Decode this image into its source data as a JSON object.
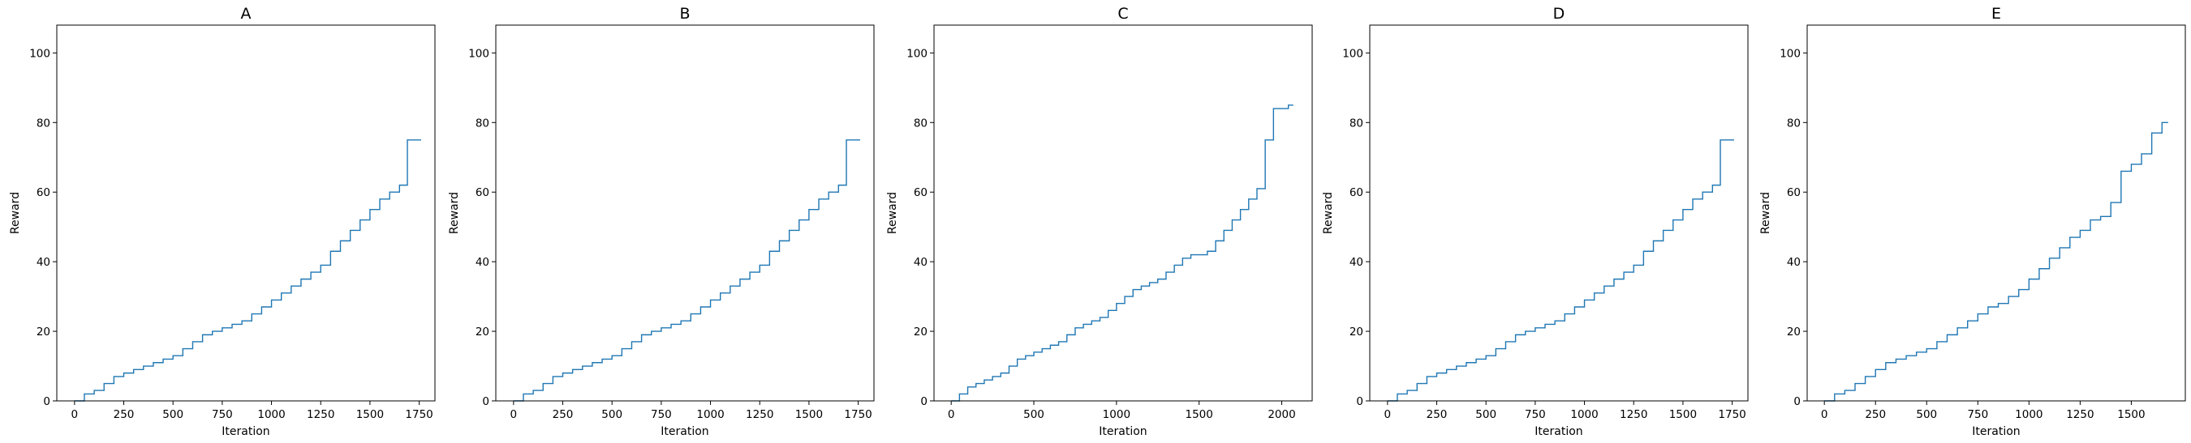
{
  "chart_data": [
    {
      "type": "line",
      "title": "A",
      "xlabel": "Iteration",
      "ylabel": "Reward",
      "xlim": [
        -90,
        1830
      ],
      "ylim": [
        0,
        108
      ],
      "xticks": [
        0,
        250,
        500,
        750,
        1000,
        1250,
        1500,
        1750
      ],
      "yticks": [
        0,
        20,
        40,
        60,
        80,
        100
      ],
      "grid": false,
      "color": "#1f77b4",
      "series": [
        {
          "x": [
            0,
            50,
            100,
            150,
            200,
            250,
            300,
            350,
            400,
            450,
            500,
            550,
            600,
            650,
            700,
            750,
            800,
            850,
            900,
            950,
            1000,
            1050,
            1100,
            1150,
            1200,
            1250,
            1300,
            1350,
            1400,
            1450,
            1500,
            1550,
            1600,
            1650,
            1690,
            1760
          ],
          "y": [
            0,
            2,
            3,
            5,
            7,
            8,
            9,
            10,
            11,
            12,
            13,
            15,
            17,
            19,
            20,
            21,
            22,
            23,
            25,
            27,
            29,
            31,
            33,
            35,
            37,
            39,
            43,
            46,
            49,
            52,
            55,
            58,
            60,
            62,
            75,
            75
          ]
        }
      ]
    },
    {
      "type": "line",
      "title": "B",
      "xlabel": "Iteration",
      "ylabel": "Reward",
      "xlim": [
        -90,
        1830
      ],
      "ylim": [
        0,
        108
      ],
      "xticks": [
        0,
        250,
        500,
        750,
        1000,
        1250,
        1500,
        1750
      ],
      "yticks": [
        0,
        20,
        40,
        60,
        80,
        100
      ],
      "grid": false,
      "color": "#1f77b4",
      "series": [
        {
          "x": [
            0,
            50,
            100,
            150,
            200,
            250,
            300,
            350,
            400,
            450,
            500,
            550,
            600,
            650,
            700,
            750,
            800,
            850,
            900,
            950,
            1000,
            1050,
            1100,
            1150,
            1200,
            1250,
            1300,
            1350,
            1400,
            1450,
            1500,
            1550,
            1600,
            1650,
            1690,
            1760
          ],
          "y": [
            0,
            2,
            3,
            5,
            7,
            8,
            9,
            10,
            11,
            12,
            13,
            15,
            17,
            19,
            20,
            21,
            22,
            23,
            25,
            27,
            29,
            31,
            33,
            35,
            37,
            39,
            43,
            46,
            49,
            52,
            55,
            58,
            60,
            62,
            75,
            75
          ]
        }
      ]
    },
    {
      "type": "line",
      "title": "C",
      "xlabel": "Iteration",
      "ylabel": "Reward",
      "xlim": [
        -104,
        2184
      ],
      "ylim": [
        0,
        108
      ],
      "xticks": [
        0,
        500,
        1000,
        1500,
        2000
      ],
      "yticks": [
        0,
        20,
        40,
        60,
        80,
        100
      ],
      "grid": false,
      "color": "#1f77b4",
      "series": [
        {
          "x": [
            0,
            50,
            100,
            150,
            200,
            250,
            300,
            350,
            400,
            450,
            500,
            550,
            600,
            650,
            700,
            750,
            800,
            850,
            900,
            950,
            1000,
            1050,
            1100,
            1150,
            1200,
            1250,
            1300,
            1350,
            1400,
            1450,
            1500,
            1550,
            1600,
            1650,
            1700,
            1750,
            1800,
            1850,
            1900,
            1950,
            2000,
            2040,
            2070
          ],
          "y": [
            0,
            2,
            4,
            5,
            6,
            7,
            8,
            10,
            12,
            13,
            14,
            15,
            16,
            17,
            19,
            21,
            22,
            23,
            24,
            26,
            28,
            30,
            32,
            33,
            34,
            35,
            37,
            39,
            41,
            42,
            42,
            43,
            46,
            49,
            52,
            55,
            58,
            61,
            75,
            84,
            84,
            85,
            85
          ]
        }
      ]
    },
    {
      "type": "line",
      "title": "D",
      "xlabel": "Iteration",
      "ylabel": "Reward",
      "xlim": [
        -90,
        1830
      ],
      "ylim": [
        0,
        108
      ],
      "xticks": [
        0,
        250,
        500,
        750,
        1000,
        1250,
        1500,
        1750
      ],
      "yticks": [
        0,
        20,
        40,
        60,
        80,
        100
      ],
      "grid": false,
      "color": "#1f77b4",
      "series": [
        {
          "x": [
            0,
            50,
            100,
            150,
            200,
            250,
            300,
            350,
            400,
            450,
            500,
            550,
            600,
            650,
            700,
            750,
            800,
            850,
            900,
            950,
            1000,
            1050,
            1100,
            1150,
            1200,
            1250,
            1300,
            1350,
            1400,
            1450,
            1500,
            1550,
            1600,
            1650,
            1690,
            1760
          ],
          "y": [
            0,
            2,
            3,
            5,
            7,
            8,
            9,
            10,
            11,
            12,
            13,
            15,
            17,
            19,
            20,
            21,
            22,
            23,
            25,
            27,
            29,
            31,
            33,
            35,
            37,
            39,
            43,
            46,
            49,
            52,
            55,
            58,
            60,
            62,
            75,
            75
          ]
        }
      ]
    },
    {
      "type": "line",
      "title": "E",
      "xlabel": "Iteration",
      "ylabel": "Reward",
      "xlim": [
        -84,
        1764
      ],
      "ylim": [
        0,
        108
      ],
      "xticks": [
        0,
        250,
        500,
        750,
        1000,
        1250,
        1500
      ],
      "yticks": [
        0,
        20,
        40,
        60,
        80,
        100
      ],
      "grid": false,
      "color": "#1f77b4",
      "series": [
        {
          "x": [
            0,
            50,
            100,
            150,
            200,
            250,
            300,
            350,
            400,
            450,
            500,
            550,
            600,
            650,
            700,
            750,
            800,
            850,
            900,
            950,
            1000,
            1050,
            1100,
            1150,
            1200,
            1250,
            1300,
            1350,
            1400,
            1450,
            1500,
            1550,
            1600,
            1650,
            1680
          ],
          "y": [
            0,
            2,
            3,
            5,
            7,
            9,
            11,
            12,
            13,
            14,
            15,
            17,
            19,
            21,
            23,
            25,
            27,
            28,
            30,
            32,
            35,
            38,
            41,
            44,
            47,
            49,
            52,
            53,
            57,
            66,
            68,
            71,
            77,
            80,
            80
          ]
        }
      ]
    }
  ]
}
